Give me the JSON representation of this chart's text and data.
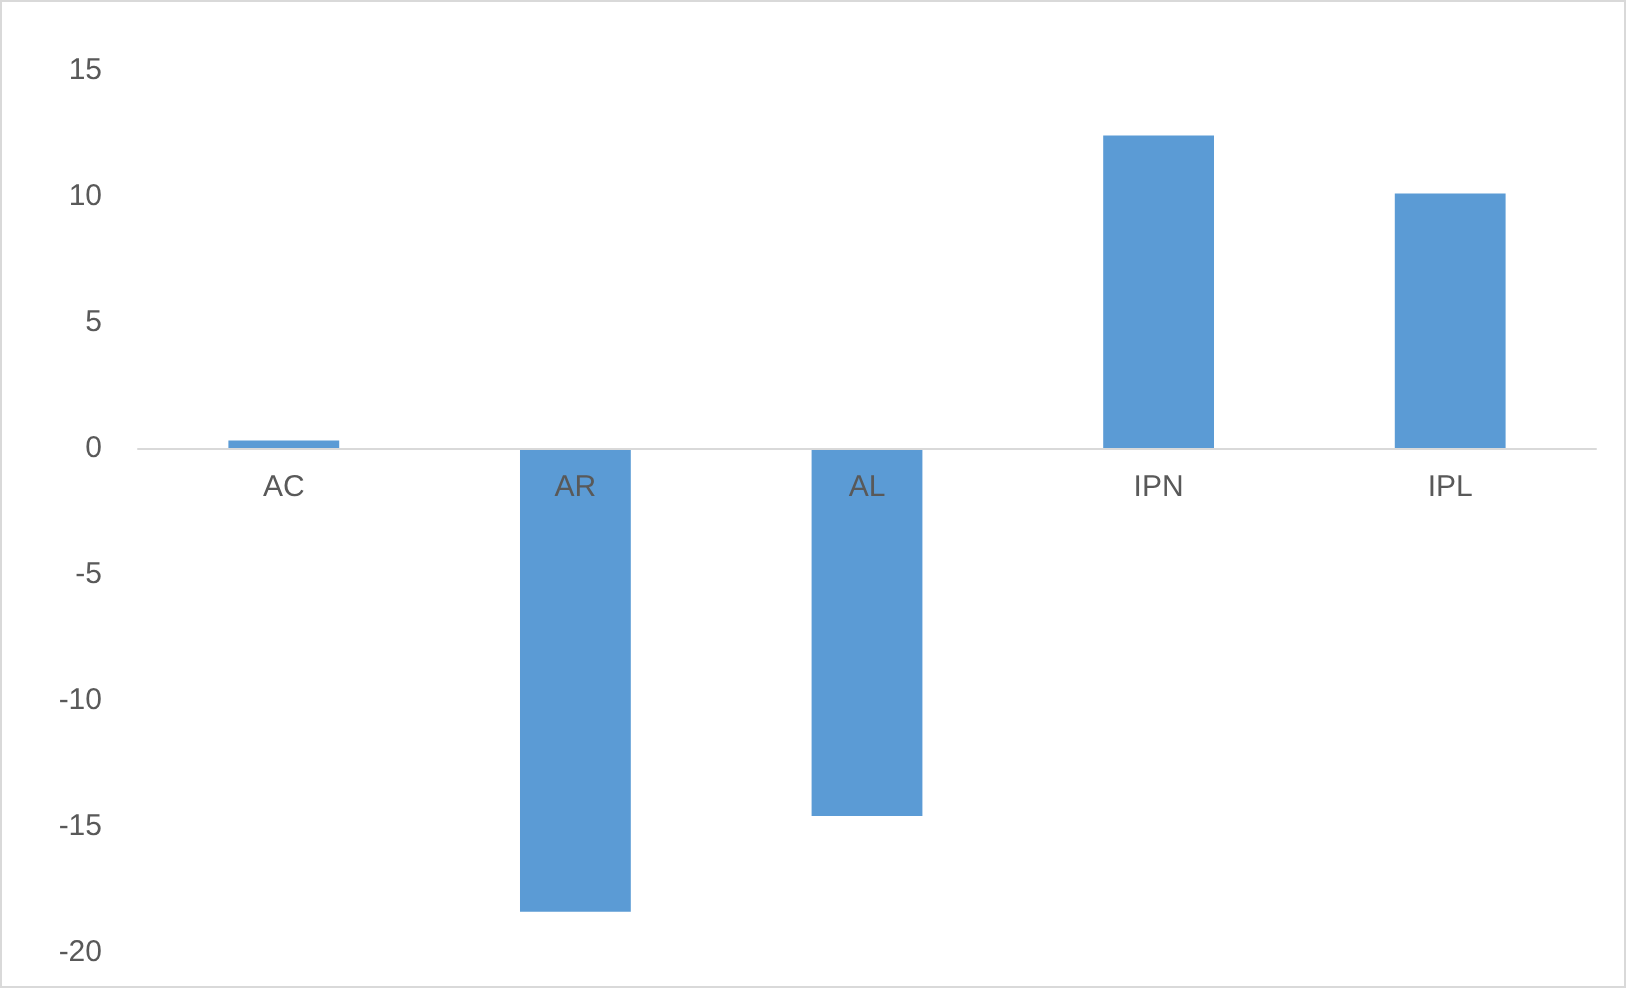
{
  "chart_data": {
    "type": "bar",
    "categories": [
      "AC",
      "AR",
      "AL",
      "IPN",
      "IPL"
    ],
    "values": [
      0.3,
      -18.4,
      -14.6,
      12.4,
      10.1
    ],
    "color": "#5b9bd5",
    "ylim": [
      -20,
      15
    ],
    "yticks": [
      -20,
      -15,
      -10,
      -5,
      0,
      5,
      10,
      15
    ],
    "grid": false
  }
}
